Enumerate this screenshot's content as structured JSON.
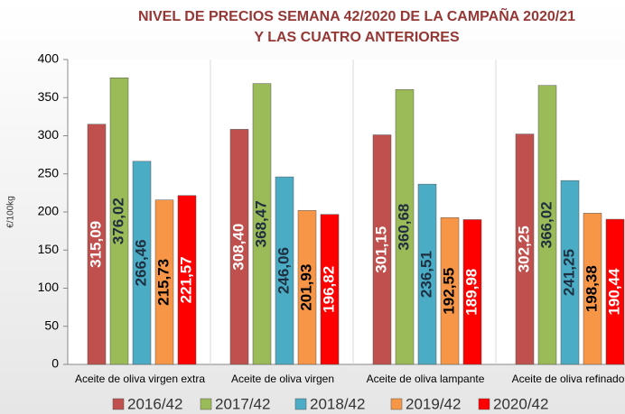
{
  "chart_data": {
    "type": "bar",
    "title": [
      "NIVEL DE PRECIOS SEMANA 42/2020 DE LA CAMPAÑA 2020/21",
      "Y LAS CUATRO ANTERIORES"
    ],
    "y_label": "€/100kg",
    "categories": [
      "Aceite de oliva virgen extra",
      "Aceite de oliva virgen",
      "Aceite de oliva lampante",
      "Aceite de oliva refinado"
    ],
    "series": [
      {
        "name": "2016/42",
        "color": "#c0504d",
        "label_color": "#ffffff",
        "values": [
          315.09,
          308.4,
          301.15,
          302.25
        ],
        "value_labels": [
          "315,09",
          "308,40",
          "301,15",
          "302,25"
        ]
      },
      {
        "name": "2017/42",
        "color": "#9bbb59",
        "label_color": "#1f2f3f",
        "values": [
          376.02,
          368.47,
          360.68,
          366.02
        ],
        "value_labels": [
          "376,02",
          "368,47",
          "360,68",
          "366,02"
        ]
      },
      {
        "name": "2018/42",
        "color": "#4bacc6",
        "label_color": "#1f2f3f",
        "values": [
          266.46,
          246.06,
          236.51,
          241.25
        ],
        "value_labels": [
          "266,46",
          "246,06",
          "236,51",
          "241,25"
        ]
      },
      {
        "name": "2019/42",
        "color": "#f79646",
        "label_color": "#000000",
        "values": [
          215.73,
          201.93,
          192.55,
          198.38
        ],
        "value_labels": [
          "215,73",
          "201,93",
          "192,55",
          "198,38"
        ]
      },
      {
        "name": "2020/42",
        "color": "#ff0000",
        "label_color": "#ffffff",
        "values": [
          221.57,
          196.82,
          189.98,
          190.44
        ],
        "value_labels": [
          "221,57",
          "196,82",
          "189,98",
          "190,44"
        ]
      }
    ],
    "ylim": [
      0,
      400
    ],
    "yticks": [
      0,
      50,
      100,
      150,
      200,
      250,
      300,
      350,
      400
    ],
    "grid": false,
    "legend": "bottom"
  }
}
